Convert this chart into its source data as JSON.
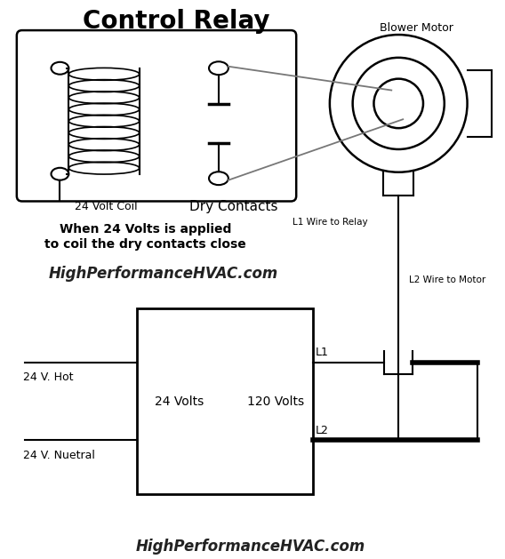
{
  "title": "Control Relay",
  "bg_color": "#ffffff",
  "line_color": "#000000",
  "watermark": "HighPerformanceHVAC.com",
  "label_24v_coil": "24 Volt Coil",
  "label_dry_contacts": "Dry Contacts",
  "label_when_line1": "When 24 Volts is applied",
  "label_when_line2": "to coil the dry contacts close",
  "label_blower_motor": "Blower Motor",
  "label_l1_wire": "L1 Wire to Relay",
  "label_l2_wire": "L2 Wire to Motor",
  "label_24volts": "24 Volts",
  "label_120volts": "120 Volts",
  "label_l1": "L1",
  "label_l2": "L2",
  "label_24v_hot": "24 V. Hot",
  "label_24v_neutral": "24 V. Nuetral"
}
